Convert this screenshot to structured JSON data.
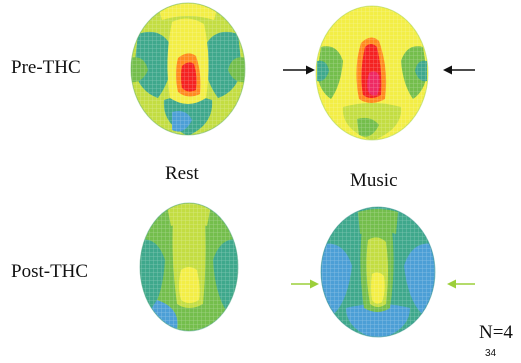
{
  "labels": {
    "pre_thc": "Pre-THC",
    "post_thc": "Post-THC",
    "rest": "Rest",
    "music": "Music",
    "n": "N=4",
    "page_number": "34"
  },
  "colors": {
    "blue": "#4c9fd6",
    "teal": "#3fa88c",
    "green": "#74be4c",
    "yellow_green": "#c3dd42",
    "yellow": "#f3ee46",
    "orange": "#ff8a1e",
    "red": "#f42222",
    "pink_red": "#ee2a64",
    "arrow_black": "#111111",
    "arrow_green": "#9ccf3a"
  }
}
